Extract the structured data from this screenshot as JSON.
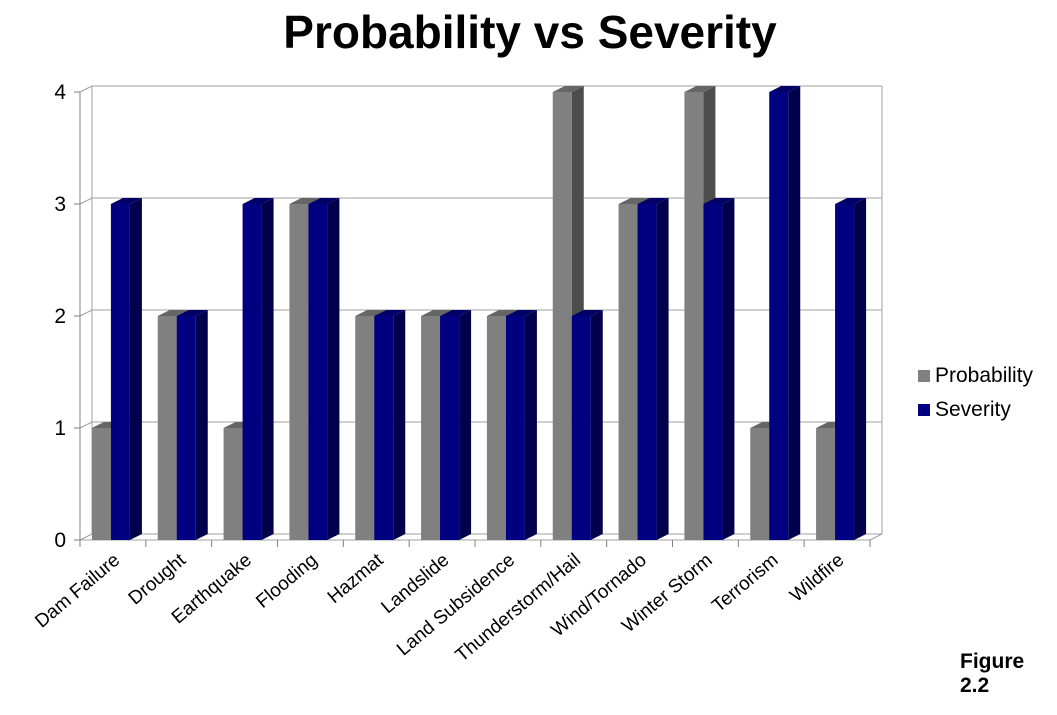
{
  "chart_data": {
    "type": "bar",
    "title": "Probability vs Severity",
    "categories": [
      "Dam Failure",
      "Drought",
      "Earthquake",
      "Flooding",
      "Hazmat",
      "Landslide",
      "Land Subsidence",
      "Thunderstorm/Hail",
      "Wind/Tornado",
      "Winter Storm",
      "Terrorism",
      "Wildfire"
    ],
    "series": [
      {
        "name": "Probability",
        "values": [
          1,
          2,
          1,
          3,
          2,
          2,
          2,
          4,
          3,
          4,
          1,
          1
        ]
      },
      {
        "name": "Severity",
        "values": [
          3,
          2,
          3,
          3,
          2,
          2,
          2,
          2,
          3,
          3,
          4,
          3
        ]
      }
    ],
    "ylim": [
      0,
      4
    ],
    "yticks": [
      0,
      1,
      2,
      3,
      4
    ],
    "grid": true,
    "legend": "right",
    "style": "3d-clustered-column"
  },
  "colors": {
    "probability": "#808080",
    "severity": "#000080",
    "grid": "#a0a0a0"
  },
  "caption": "Figure 2.2"
}
